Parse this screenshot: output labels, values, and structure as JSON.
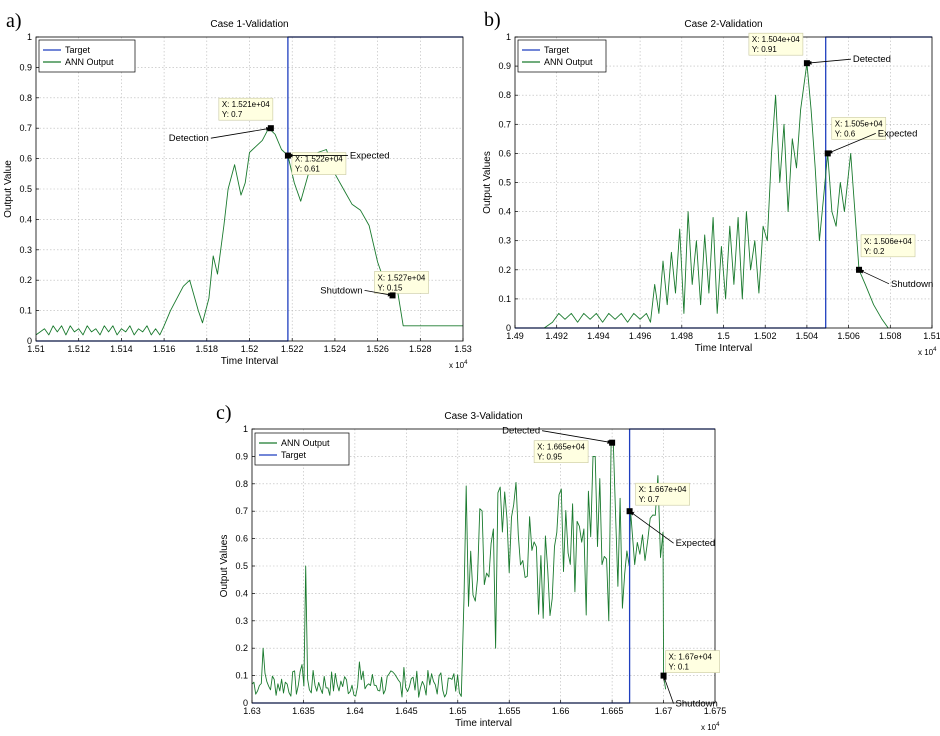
{
  "colors": {
    "target": "#1f3fbf",
    "ann": "#1a7a2e",
    "marker": "#000000"
  },
  "chart_data": [
    {
      "type": "line",
      "panel": "a)",
      "title": "Case 1-Validation",
      "xlabel": "Time Interval",
      "ylabel": "Output Value",
      "x_exponent": "x 10^4",
      "xlim": [
        1.51,
        1.53
      ],
      "ylim": [
        0,
        1
      ],
      "xticks": [
        "1.51",
        "1.512",
        "1.514",
        "1.516",
        "1.518",
        "1.52",
        "1.522",
        "1.524",
        "1.526",
        "1.528",
        "1.53"
      ],
      "yticks": [
        "0",
        "0.1",
        "0.2",
        "0.3",
        "0.4",
        "0.5",
        "0.6",
        "0.7",
        "0.8",
        "0.9",
        "1"
      ],
      "legend_position": "top-left",
      "legend": [
        "Target",
        "ANN Output"
      ],
      "series": [
        {
          "name": "Target",
          "color_key": "target",
          "points": [
            [
              1.51,
              0
            ],
            [
              1.5218,
              0
            ],
            [
              1.5218,
              1
            ],
            [
              1.53,
              1
            ]
          ]
        },
        {
          "name": "ANN Output",
          "color_key": "ann",
          "points": [
            [
              1.51,
              0.02
            ],
            [
              1.5104,
              0.04
            ],
            [
              1.5106,
              0.02
            ],
            [
              1.5108,
              0.05
            ],
            [
              1.511,
              0.03
            ],
            [
              1.5112,
              0.05
            ],
            [
              1.5114,
              0.02
            ],
            [
              1.5116,
              0.05
            ],
            [
              1.5118,
              0.03
            ],
            [
              1.512,
              0.04
            ],
            [
              1.5122,
              0.02
            ],
            [
              1.5124,
              0.05
            ],
            [
              1.5126,
              0.03
            ],
            [
              1.5128,
              0.04
            ],
            [
              1.513,
              0.02
            ],
            [
              1.5132,
              0.05
            ],
            [
              1.5134,
              0.03
            ],
            [
              1.5136,
              0.05
            ],
            [
              1.5138,
              0.02
            ],
            [
              1.514,
              0.04
            ],
            [
              1.5142,
              0.03
            ],
            [
              1.5144,
              0.05
            ],
            [
              1.5146,
              0.02
            ],
            [
              1.5148,
              0.04
            ],
            [
              1.515,
              0.03
            ],
            [
              1.5152,
              0.05
            ],
            [
              1.5154,
              0.02
            ],
            [
              1.5156,
              0.04
            ],
            [
              1.5158,
              0.02
            ],
            [
              1.516,
              0.05
            ],
            [
              1.5163,
              0.1
            ],
            [
              1.5166,
              0.14
            ],
            [
              1.5169,
              0.18
            ],
            [
              1.5172,
              0.2
            ],
            [
              1.5176,
              0.1
            ],
            [
              1.5178,
              0.06
            ],
            [
              1.5181,
              0.14
            ],
            [
              1.5183,
              0.28
            ],
            [
              1.5185,
              0.22
            ],
            [
              1.5188,
              0.38
            ],
            [
              1.519,
              0.5
            ],
            [
              1.5193,
              0.58
            ],
            [
              1.5196,
              0.48
            ],
            [
              1.5198,
              0.52
            ],
            [
              1.52,
              0.62
            ],
            [
              1.5203,
              0.64
            ],
            [
              1.5206,
              0.66
            ],
            [
              1.5209,
              0.7
            ],
            [
              1.5212,
              0.68
            ],
            [
              1.5215,
              0.63
            ],
            [
              1.5218,
              0.61
            ],
            [
              1.5221,
              0.52
            ],
            [
              1.5224,
              0.46
            ],
            [
              1.5228,
              0.56
            ],
            [
              1.5232,
              0.62
            ],
            [
              1.5236,
              0.63
            ],
            [
              1.524,
              0.55
            ],
            [
              1.5244,
              0.5
            ],
            [
              1.5248,
              0.45
            ],
            [
              1.5252,
              0.43
            ],
            [
              1.5256,
              0.38
            ],
            [
              1.526,
              0.26
            ],
            [
              1.5264,
              0.18
            ],
            [
              1.5267,
              0.15
            ],
            [
              1.5269,
              0.18
            ],
            [
              1.5272,
              0.05
            ],
            [
              1.53,
              0.05
            ]
          ]
        }
      ],
      "datatips": [
        {
          "text": [
            "X: 1.521e+04",
            "Y: 0.7"
          ],
          "x": 1.521,
          "y": 0.7,
          "label": "Detection",
          "label_side": "left"
        },
        {
          "text": [
            "X: 1.522e+04",
            "Y: 0.61"
          ],
          "x": 1.5218,
          "y": 0.61,
          "label": "Expected",
          "label_side": "right"
        },
        {
          "text": [
            "X: 1.527e+04",
            "Y: 0.15"
          ],
          "x": 1.5267,
          "y": 0.15,
          "label": "Shutdown",
          "label_side": "left"
        }
      ]
    },
    {
      "type": "line",
      "panel": "b)",
      "title": "Case 2-Validation",
      "xlabel": "Time Interval",
      "ylabel": "Output Values",
      "x_exponent": "x 10^4",
      "xlim": [
        1.49,
        1.51
      ],
      "ylim": [
        0,
        1
      ],
      "xticks": [
        "1.49",
        "1.492",
        "1.494",
        "1.496",
        "1.498",
        "1.5",
        "1.502",
        "1.504",
        "1.506",
        "1.508",
        "1.51"
      ],
      "yticks": [
        "0",
        "0.1",
        "0.2",
        "0.3",
        "0.4",
        "0.5",
        "0.6",
        "0.7",
        "0.8",
        "0.9",
        "1"
      ],
      "legend_position": "top-left",
      "legend": [
        "Target",
        "ANN Output"
      ],
      "series": [
        {
          "name": "Target",
          "color_key": "target",
          "points": [
            [
              1.49,
              0
            ],
            [
              1.5049,
              0
            ],
            [
              1.5049,
              1
            ],
            [
              1.51,
              1
            ]
          ]
        },
        {
          "name": "ANN Output",
          "color_key": "ann",
          "points": [
            [
              1.4914,
              0
            ],
            [
              1.4918,
              0.02
            ],
            [
              1.4921,
              0.05
            ],
            [
              1.4924,
              0.03
            ],
            [
              1.4927,
              0.05
            ],
            [
              1.493,
              0.02
            ],
            [
              1.4933,
              0.05
            ],
            [
              1.4936,
              0.03
            ],
            [
              1.4939,
              0.05
            ],
            [
              1.4942,
              0.02
            ],
            [
              1.4945,
              0.05
            ],
            [
              1.4948,
              0.03
            ],
            [
              1.4951,
              0.05
            ],
            [
              1.4954,
              0.02
            ],
            [
              1.4957,
              0.05
            ],
            [
              1.496,
              0.03
            ],
            [
              1.4963,
              0.05
            ],
            [
              1.4965,
              0.02
            ],
            [
              1.4967,
              0.15
            ],
            [
              1.4969,
              0.05
            ],
            [
              1.4971,
              0.23
            ],
            [
              1.4973,
              0.08
            ],
            [
              1.4975,
              0.26
            ],
            [
              1.4977,
              0.12
            ],
            [
              1.4979,
              0.34
            ],
            [
              1.4981,
              0.05
            ],
            [
              1.4983,
              0.4
            ],
            [
              1.4985,
              0.15
            ],
            [
              1.4987,
              0.3
            ],
            [
              1.4989,
              0.08
            ],
            [
              1.4991,
              0.32
            ],
            [
              1.4993,
              0.12
            ],
            [
              1.4995,
              0.38
            ],
            [
              1.4997,
              0.05
            ],
            [
              1.4999,
              0.28
            ],
            [
              1.5001,
              0.1
            ],
            [
              1.5003,
              0.35
            ],
            [
              1.5005,
              0.15
            ],
            [
              1.5007,
              0.38
            ],
            [
              1.5009,
              0.1
            ],
            [
              1.5011,
              0.4
            ],
            [
              1.5013,
              0.2
            ],
            [
              1.5015,
              0.3
            ],
            [
              1.5017,
              0.12
            ],
            [
              1.5019,
              0.35
            ],
            [
              1.5021,
              0.3
            ],
            [
              1.5023,
              0.6
            ],
            [
              1.5025,
              0.8
            ],
            [
              1.5027,
              0.5
            ],
            [
              1.5029,
              0.7
            ],
            [
              1.5031,
              0.4
            ],
            [
              1.5033,
              0.65
            ],
            [
              1.5035,
              0.55
            ],
            [
              1.5037,
              0.75
            ],
            [
              1.504,
              0.91
            ],
            [
              1.5042,
              0.75
            ],
            [
              1.5044,
              0.55
            ],
            [
              1.5046,
              0.3
            ],
            [
              1.5048,
              0.45
            ],
            [
              1.505,
              0.6
            ],
            [
              1.5052,
              0.4
            ],
            [
              1.5054,
              0.35
            ],
            [
              1.5056,
              0.5
            ],
            [
              1.5058,
              0.4
            ],
            [
              1.5061,
              0.6
            ],
            [
              1.5063,
              0.4
            ],
            [
              1.5065,
              0.2
            ],
            [
              1.5068,
              0.15
            ],
            [
              1.5072,
              0.08
            ],
            [
              1.5076,
              0.03
            ],
            [
              1.5079,
              0
            ]
          ]
        }
      ],
      "datatips": [
        {
          "text": [
            "X: 1.504e+04",
            "Y: 0.91"
          ],
          "x": 1.504,
          "y": 0.91,
          "label": "Detected",
          "label_side": "right"
        },
        {
          "text": [
            "X: 1.505e+04",
            "Y: 0.6"
          ],
          "x": 1.505,
          "y": 0.6,
          "label": "Expected",
          "label_side": "right"
        },
        {
          "text": [
            "X: 1.506e+04",
            "Y: 0.2"
          ],
          "x": 1.5065,
          "y": 0.2,
          "label": "Shutdown",
          "label_side": "right"
        }
      ]
    },
    {
      "type": "line",
      "panel": "c)",
      "title": "Case 3-Validation",
      "xlabel": "Time interval",
      "ylabel": "Output Values",
      "x_exponent": "x 10^4",
      "xlim": [
        1.63,
        1.675
      ],
      "ylim": [
        0,
        1
      ],
      "xticks": [
        "1.63",
        "1.635",
        "1.64",
        "1.645",
        "1.65",
        "1.655",
        "1.66",
        "1.665",
        "1.67",
        "1.675"
      ],
      "yticks": [
        "0",
        "0.1",
        "0.2",
        "0.3",
        "0.4",
        "0.5",
        "0.6",
        "0.7",
        "0.8",
        "0.9",
        "1"
      ],
      "legend_position": "top-left",
      "legend": [
        "ANN Output",
        "Target"
      ],
      "series": [
        {
          "name": "ANN Output",
          "color_key": "ann",
          "generated": "noise"
        },
        {
          "name": "Target",
          "color_key": "target",
          "points": [
            [
              1.63,
              0
            ],
            [
              1.6667,
              0
            ],
            [
              1.6667,
              1
            ],
            [
              1.675,
              1
            ]
          ]
        }
      ],
      "datatips": [
        {
          "text": [
            "X: 1.665e+04",
            "Y: 0.95"
          ],
          "x": 1.665,
          "y": 0.95,
          "label": "Detected",
          "label_side": "left"
        },
        {
          "text": [
            "X: 1.667e+04",
            "Y: 0.7"
          ],
          "x": 1.6667,
          "y": 0.7,
          "label": "Expected",
          "label_side": "right"
        },
        {
          "text": [
            "X: 1.67e+04",
            "Y: 0.1"
          ],
          "x": 1.67,
          "y": 0.1,
          "label": "Shutdown",
          "label_side": "right"
        }
      ]
    }
  ]
}
